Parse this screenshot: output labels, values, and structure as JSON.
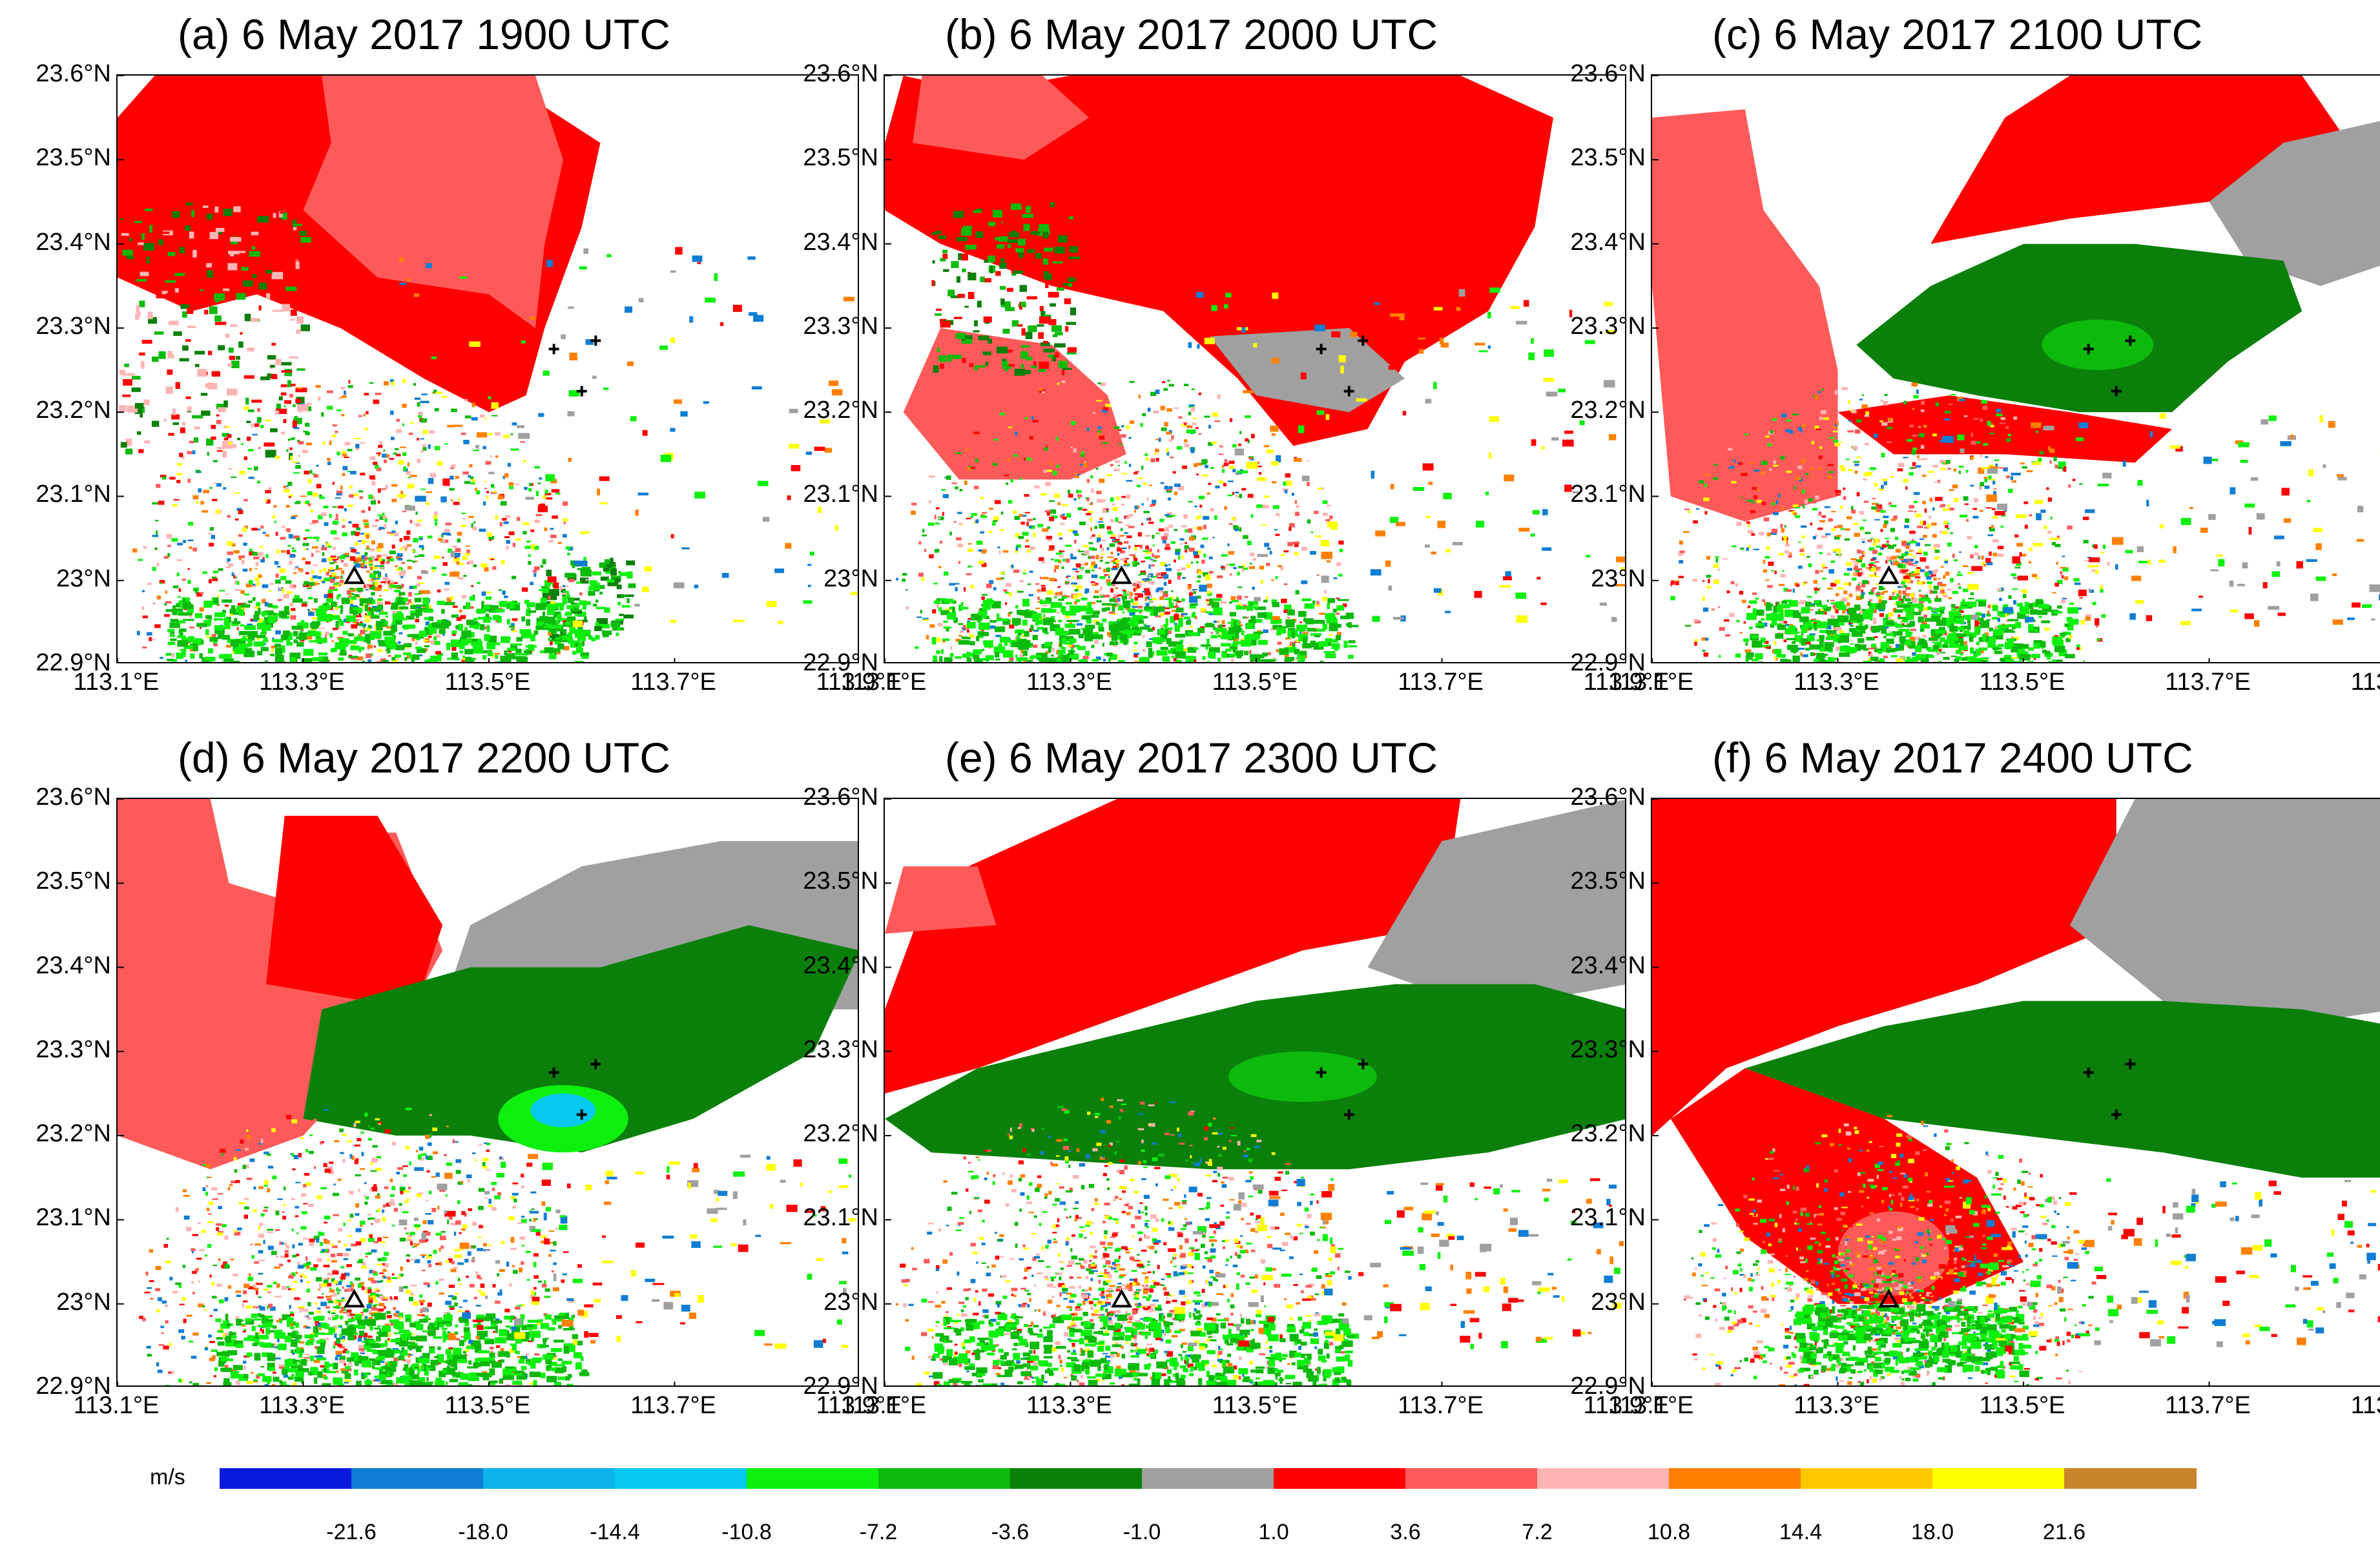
{
  "chart_data": {
    "type": "heatmap",
    "figure_description_units": "m/s",
    "x_range": [
      113.1,
      113.9
    ],
    "y_range": [
      22.9,
      23.6
    ],
    "x_ticks": [
      "113.1°E",
      "113.3°E",
      "113.5°E",
      "113.7°E",
      "113.9°E"
    ],
    "y_ticks": [
      "22.9°N",
      "23°N",
      "23.1°N",
      "23.2°N",
      "23.3°N",
      "23.4°N",
      "23.5°N",
      "23.6°N"
    ],
    "radar_site": {
      "lon": 113.355,
      "lat": 23.005,
      "marker": "triangle"
    },
    "stations": [
      {
        "lon": 113.57,
        "lat": 23.275
      },
      {
        "lon": 113.615,
        "lat": 23.285
      },
      {
        "lon": 113.6,
        "lat": 23.225
      }
    ],
    "panels": [
      {
        "id": "a",
        "title": "(a)  6 May 2017 1900 UTC"
      },
      {
        "id": "b",
        "title": "(b)  6 May 2017 2000 UTC"
      },
      {
        "id": "c",
        "title": "(c)  6 May 2017 2100 UTC"
      },
      {
        "id": "d",
        "title": "(d)  6 May 2017 2200 UTC"
      },
      {
        "id": "e",
        "title": "(e)  6 May 2017 2300 UTC"
      },
      {
        "id": "f",
        "title": "(f)  6 May 2017 2400 UTC"
      }
    ],
    "colorbar": {
      "unit_label": "m/s",
      "colors": [
        "#0a1adb",
        "#0f7dd3",
        "#0cb3ea",
        "#09c8f0",
        "#0df00d",
        "#0cba0c",
        "#0a800a",
        "#a0a0a0",
        "#ff0000",
        "#ff5a5a",
        "#ffb4b4",
        "#ff8000",
        "#ffc800",
        "#ffff00",
        "#c8862a"
      ],
      "tick_labels": [
        "-21.6",
        "-18.0",
        "-14.4",
        "-10.8",
        "-7.2",
        "-3.6",
        "-1.0",
        "1.0",
        "3.6",
        "7.2",
        "10.8",
        "14.4",
        "18.0",
        "21.6"
      ]
    }
  }
}
